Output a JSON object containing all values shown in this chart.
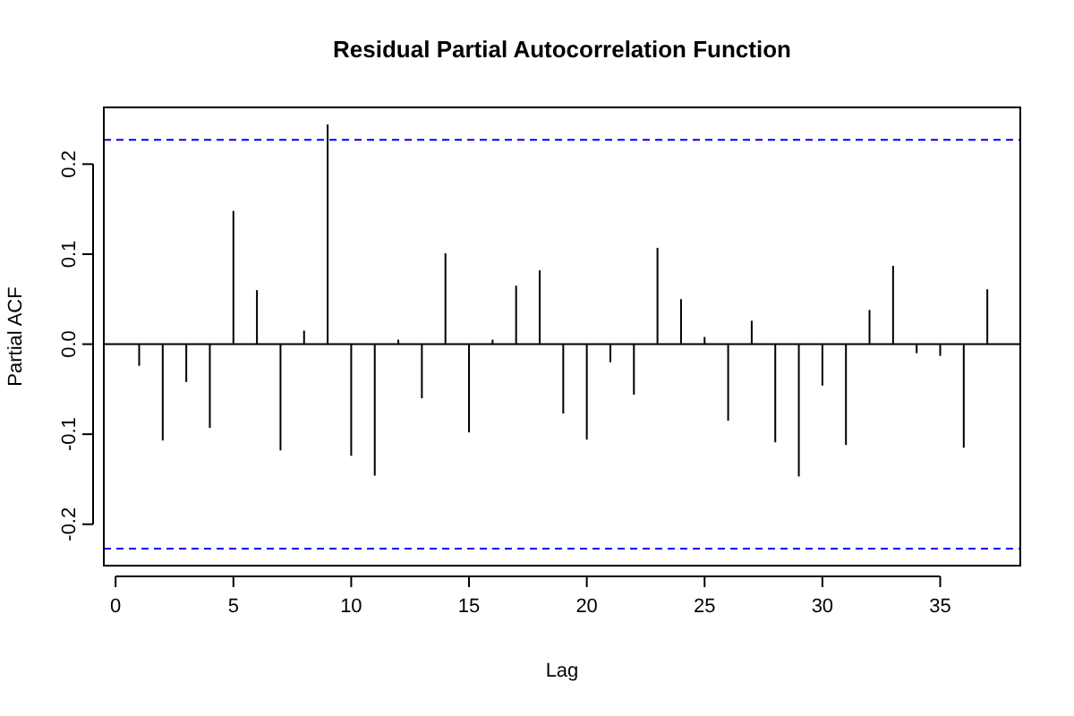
{
  "chart_data": {
    "type": "bar",
    "title": "Residual Partial Autocorrelation Function",
    "xlabel": "Lag",
    "ylabel": "Partial ACF",
    "x": [
      1,
      2,
      3,
      4,
      5,
      6,
      7,
      8,
      9,
      10,
      11,
      12,
      13,
      14,
      15,
      16,
      17,
      18,
      19,
      20,
      21,
      22,
      23,
      24,
      25,
      26,
      27,
      28,
      29,
      30,
      31,
      32,
      33,
      34,
      35,
      36,
      37
    ],
    "values": [
      -0.024,
      -0.107,
      -0.042,
      -0.093,
      0.148,
      0.06,
      -0.118,
      0.015,
      0.244,
      -0.124,
      -0.146,
      0.005,
      -0.06,
      0.101,
      -0.098,
      0.005,
      0.065,
      0.082,
      -0.077,
      -0.106,
      -0.02,
      -0.056,
      0.107,
      0.05,
      0.008,
      -0.085,
      0.026,
      -0.109,
      -0.147,
      -0.046,
      -0.112,
      0.038,
      0.087,
      -0.01,
      -0.013,
      -0.115,
      0.061
    ],
    "color": "#000000",
    "xlim": [
      -0.5,
      38.4
    ],
    "ylim": [
      -0.246,
      0.263
    ],
    "xticks": [
      0,
      5,
      10,
      15,
      20,
      25,
      30,
      35
    ],
    "yticks": [
      {
        "value": -0.2,
        "label": "-0.2"
      },
      {
        "value": -0.1,
        "label": "-0.1"
      },
      {
        "value": 0,
        "label": "0.0"
      },
      {
        "value": 0.1,
        "label": "0.1"
      },
      {
        "value": 0.2,
        "label": "0.2"
      }
    ],
    "ref_lines": [
      {
        "axis": "y",
        "value": 0,
        "color": "#000000",
        "line_style": "solid"
      },
      {
        "axis": "y",
        "value": 0.227,
        "color": "#0000ff",
        "line_style": "dashed"
      },
      {
        "axis": "y",
        "value": -0.227,
        "color": "#0000ff",
        "line_style": "dashed"
      }
    ],
    "grid": false
  }
}
